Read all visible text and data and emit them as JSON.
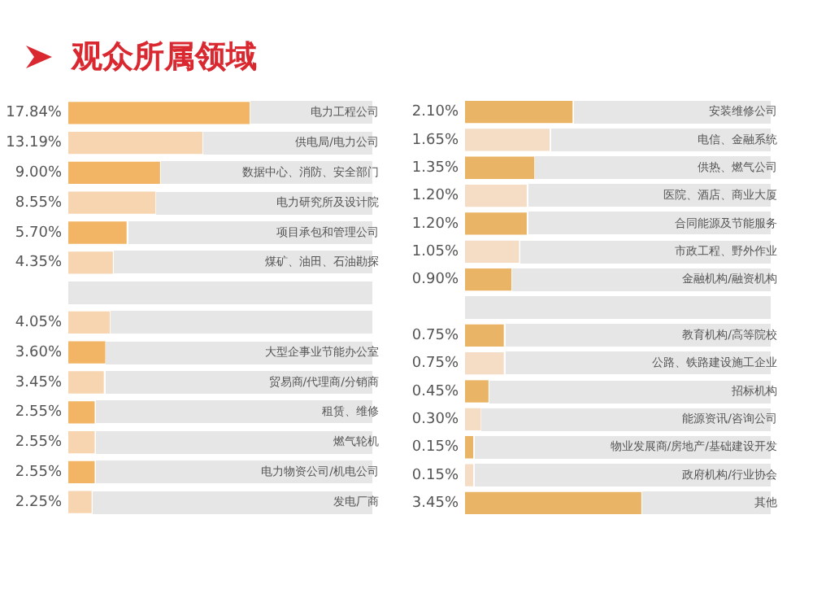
{
  "chart_data": [
    {
      "type": "bar",
      "orientation": "horizontal",
      "title": "观众所属领域",
      "categories": [
        "电力工程公司",
        "供电局/电力公司",
        "数据中心、消防、安全部门",
        "电力研究所及设计院",
        "项目承包和管理公司",
        "煤矿、油田、石油勘探",
        null,
        null,
        "大型企事业节能办公室",
        "贸易商/代理商/分销商",
        "租赁、维修",
        "燃气轮机",
        "电力物资公司/机电公司",
        "发电厂商"
      ],
      "values": [
        17.84,
        13.19,
        9.0,
        8.55,
        5.7,
        4.35,
        null,
        4.05,
        3.6,
        3.45,
        2.55,
        2.55,
        2.55,
        2.25
      ],
      "value_labels": [
        "17.84%",
        "13.19%",
        "9.00%",
        "8.55%",
        "5.70%",
        "4.35%",
        null,
        "4.05%",
        "3.60%",
        "3.45%",
        "2.55%",
        "2.55%",
        "2.55%",
        "2.25%"
      ],
      "colors": [
        "#f2b465",
        "#f7d5b0",
        "#f2b465",
        "#f7d5b0",
        "#f2b465",
        "#f7d5b0",
        "#f2b465",
        "#f7d5b0",
        "#f2b465",
        "#f7d5b0",
        "#f2b465",
        "#f7d5b0",
        "#f2b465",
        "#f7d5b0"
      ],
      "legend": false
    },
    {
      "type": "bar",
      "orientation": "horizontal",
      "categories": [
        "安装维修公司",
        "电信、金融系统",
        "供热、燃气公司",
        "医院、酒店、商业大厦",
        "合同能源及节能服务",
        "市政工程、野外作业",
        "金融机构/融资机构",
        null,
        "教育机构/高等院校",
        "公路、铁路建设施工企业",
        "招标机构",
        "能源资讯/咨询公司",
        "物业发展商/房地产/基础建设开发",
        "政府机构/行业协会",
        "其他"
      ],
      "values": [
        2.1,
        1.65,
        1.35,
        1.2,
        1.2,
        1.05,
        0.9,
        null,
        0.75,
        0.75,
        0.45,
        0.3,
        0.15,
        0.15,
        3.45
      ],
      "value_labels": [
        "2.10%",
        "1.65%",
        "1.35%",
        "1.20%",
        "1.20%",
        "1.05%",
        "0.90%",
        null,
        "0.75%",
        "0.75%",
        "0.45%",
        "0.30%",
        "0.15%",
        "0.15%",
        "3.45%"
      ],
      "colors": [
        "#eab466",
        "#f5dcc4",
        "#eab466",
        "#f5dcc4",
        "#eab466",
        "#f5dcc4",
        "#eab466",
        "#f5dcc4",
        "#eab466",
        "#f5dcc4",
        "#eab466",
        "#f5dcc4",
        "#eab466",
        "#f5dcc4",
        "#eab466"
      ],
      "legend": false
    }
  ]
}
